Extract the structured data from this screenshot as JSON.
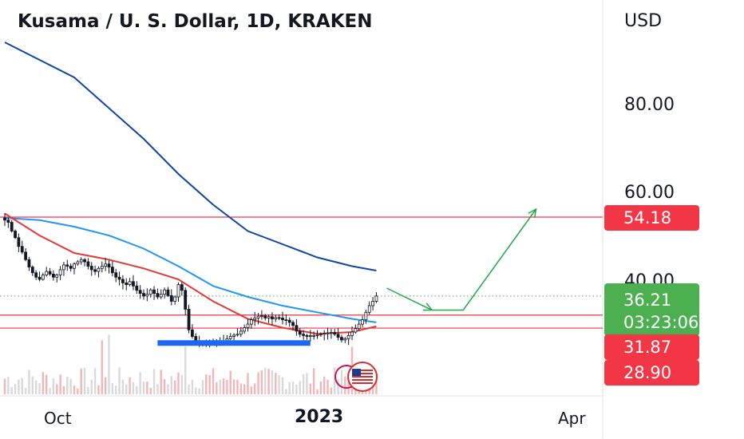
{
  "chart_data": {
    "type": "candlestick",
    "title": "Kusama / U. S. Dollar, 1D, KRAKEN",
    "currency": "USD",
    "y_axis_ticks": [
      "80.00",
      "60.00",
      "40.00"
    ],
    "x_axis_ticks": [
      "Oct",
      "2023",
      "Apr"
    ],
    "ylim": [
      22,
      105
    ],
    "last_price": {
      "value": "36.21",
      "countdown": "03:23:06",
      "color": "#4caf50"
    },
    "horizontal_levels": [
      {
        "value": 54.18,
        "label": "54.18",
        "color": "#f23645"
      },
      {
        "value": 31.87,
        "label": "31.87",
        "color": "#f23645"
      },
      {
        "value": 28.9,
        "label": "28.90",
        "color": "#f23645"
      }
    ],
    "close_series": [
      53.5,
      53,
      51,
      49.5,
      47.5,
      46.2,
      44.5,
      42.8,
      41.5,
      40.5,
      40,
      41,
      41.8,
      41.2,
      40.5,
      41,
      42.2,
      43.3,
      43,
      42.5,
      43.5,
      44,
      44.5,
      44,
      43,
      42.2,
      41.8,
      42.5,
      43,
      43.5,
      42.8,
      41.5,
      40.5,
      40,
      39.2,
      38.8,
      39.5,
      38.5,
      37.5,
      36.8,
      36.2,
      36.6,
      37.6,
      36.8,
      36,
      36.6,
      37.6,
      36.3,
      35,
      36,
      38.8,
      37.5,
      33.2,
      28.5,
      27,
      25.8,
      25.6,
      25.2,
      25.4,
      25.5,
      25.8,
      26,
      25.8,
      26,
      26.5,
      27,
      27.3,
      27.5,
      28.2,
      29,
      29.8,
      30.8,
      31.2,
      31.6,
      31.7,
      31.2,
      31.5,
      31,
      31.3,
      31.2,
      30.8,
      30.7,
      30.2,
      29.5,
      28.2,
      27.5,
      27.2,
      27,
      27.2,
      27.2,
      27.4,
      27.5,
      27.7,
      27.8,
      27.9,
      27.5,
      26.8,
      26.2,
      26.5,
      27.2,
      28,
      28.8,
      29.8,
      30.8,
      32.5,
      34,
      35,
      36.2
    ],
    "moving_averages": [
      {
        "color": "#0d47a1",
        "points": [
          [
            0,
            94
          ],
          [
            10,
            90
          ],
          [
            20,
            86
          ],
          [
            30,
            79
          ],
          [
            40,
            72
          ],
          [
            50,
            64
          ],
          [
            60,
            57
          ],
          [
            70,
            51
          ],
          [
            80,
            48
          ],
          [
            90,
            45
          ],
          [
            100,
            43
          ],
          [
            107,
            42
          ]
        ]
      },
      {
        "color": "#2196f3",
        "points": [
          [
            0,
            54
          ],
          [
            10,
            53.5
          ],
          [
            20,
            52
          ],
          [
            30,
            50
          ],
          [
            40,
            47
          ],
          [
            50,
            43
          ],
          [
            60,
            38.5
          ],
          [
            70,
            36
          ],
          [
            80,
            34
          ],
          [
            90,
            32.5
          ],
          [
            100,
            31
          ],
          [
            107,
            30.2
          ]
        ]
      },
      {
        "color": "#e53935",
        "points": [
          [
            0,
            55
          ],
          [
            10,
            50
          ],
          [
            20,
            46
          ],
          [
            30,
            44.5
          ],
          [
            40,
            42.5
          ],
          [
            50,
            40
          ],
          [
            60,
            35
          ],
          [
            70,
            31
          ],
          [
            80,
            29
          ],
          [
            90,
            27.6
          ],
          [
            100,
            28
          ],
          [
            107,
            29.3
          ]
        ]
      }
    ],
    "support_zone": {
      "from_index": 44,
      "to_index": 88,
      "value": 25.5,
      "color": "#1e66f5"
    },
    "projection": {
      "color": "#22a84c",
      "points": [
        [
          110,
          38
        ],
        [
          123,
          33
        ],
        [
          132,
          33
        ],
        [
          153,
          56
        ]
      ]
    },
    "volume_colors": {
      "up": "#f3b6b6",
      "down": "#d9d9d9"
    },
    "grid": false
  }
}
